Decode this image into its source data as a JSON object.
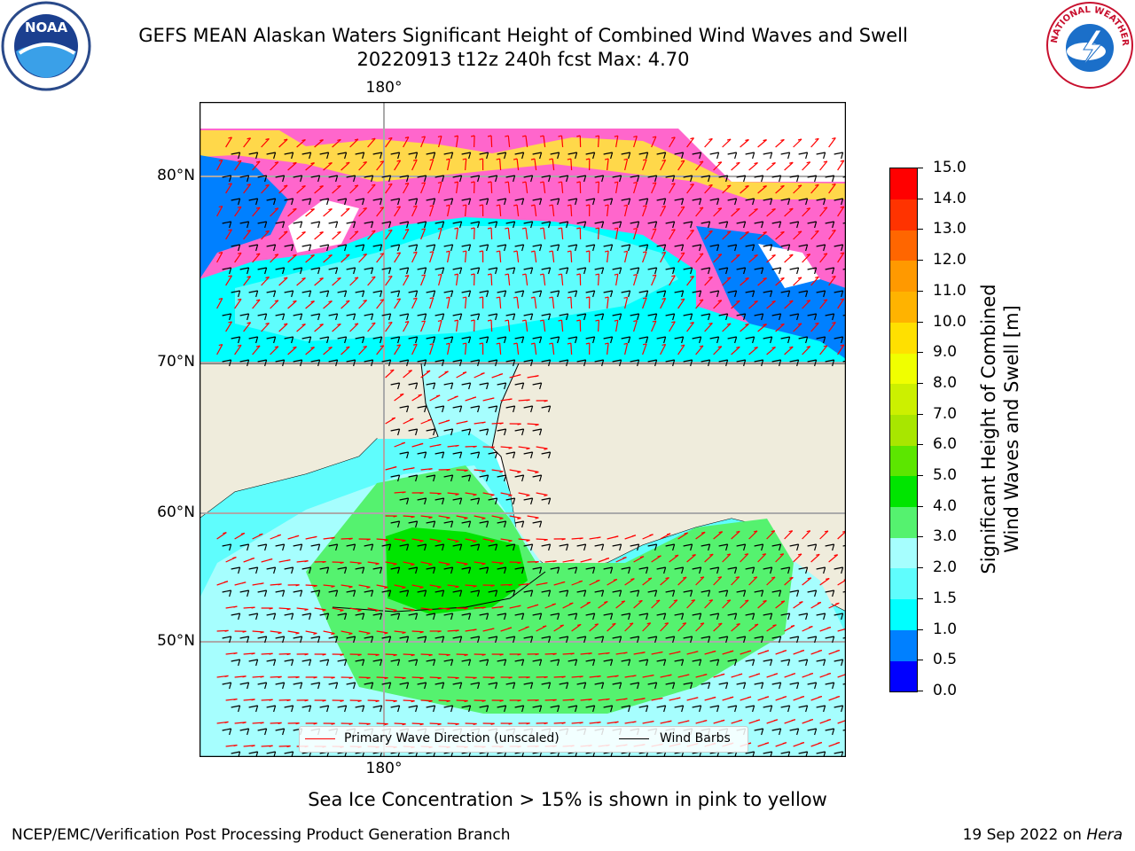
{
  "header": {
    "title_line1": "GEFS MEAN Alaskan Waters Significant Height of Combined Wind Waves and Swell",
    "title_line2": "20220913 t12z 240h fcst   Max: 4.70"
  },
  "logos": {
    "left": {
      "text": "NOAA",
      "icon": "noaa-logo-icon"
    },
    "right": {
      "text": "NATIONAL WEATHER SERVICE",
      "icon": "nws-logo-icon"
    }
  },
  "map": {
    "lon_labels": {
      "top": "180°",
      "bottom": "180°"
    },
    "lat_labels": [
      "80°N",
      "70°N",
      "60°N",
      "50°N"
    ],
    "colors": {
      "land": "#efecdc",
      "ocean_low": "#5ffdfd",
      "ocean_mid": "#a6fefe",
      "green": "#55f26f",
      "green_dark": "#00e500",
      "ice": "#ff66cc",
      "blue": "#0080ff"
    }
  },
  "legend": {
    "wave_label": "Primary Wave Direction (unscaled)",
    "barb_label": "Wind Barbs",
    "wave_color": "#ff0000",
    "barb_color": "#000000"
  },
  "colorbar": {
    "title_line1": "Significant Height of Combined",
    "title_line2": "Wind Waves and Swell [m]",
    "ticks": [
      "0.0",
      "0.5",
      "1.0",
      "1.5",
      "2.0",
      "3.0",
      "4.0",
      "5.0",
      "6.0",
      "7.0",
      "8.0",
      "9.0",
      "10.0",
      "11.0",
      "12.0",
      "13.0",
      "14.0",
      "15.0"
    ],
    "colors": [
      "#0000ff",
      "#0080ff",
      "#00ffff",
      "#5ffdfd",
      "#a6fefe",
      "#55f26f",
      "#00e500",
      "#5ce600",
      "#a8e600",
      "#ccf000",
      "#f0ff00",
      "#ffe000",
      "#ffb300",
      "#ff9900",
      "#ff6600",
      "#ff3300",
      "#ff0000"
    ]
  },
  "note": "Sea Ice Concentration > 15% is shown in pink to yellow",
  "footer": {
    "left": "NCEP/EMC/Verification Post Processing Product Generation Branch",
    "date": "19 Sep 2022 on",
    "host": "Hera"
  }
}
